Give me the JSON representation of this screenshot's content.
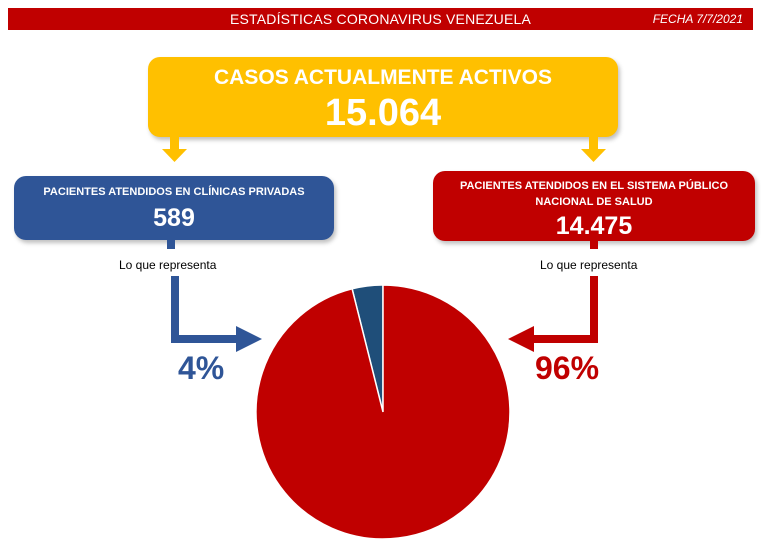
{
  "header": {
    "title": "ESTADÍSTICAS CORONAVIRUS VENEZUELA",
    "date": "FECHA 7/7/2021"
  },
  "active": {
    "label": "CASOS ACTUALMENTE ACTIVOS",
    "value": "15.064"
  },
  "private": {
    "label": "PACIENTES ATENDIDOS EN CLÍNICAS PRIVADAS",
    "value": "589",
    "note": "Lo que representa",
    "percent": "4%"
  },
  "public": {
    "label": "PACIENTES ATENDIDOS EN EL SISTEMA PÚBLICO NACIONAL DE SALUD",
    "value": "14.475",
    "note": "Lo que representa",
    "percent": "96%"
  },
  "colors": {
    "red": "#c00000",
    "blue": "#2f5597",
    "yellow": "#ffc000",
    "pie_blue": "#1f4e79"
  },
  "chart_data": {
    "type": "pie",
    "categories": [
      "CLÍNICAS PRIVADAS",
      "SISTEMA PÚBLICO NACIONAL DE SALUD"
    ],
    "values": [
      589,
      14475
    ],
    "percents": [
      4,
      96
    ]
  }
}
